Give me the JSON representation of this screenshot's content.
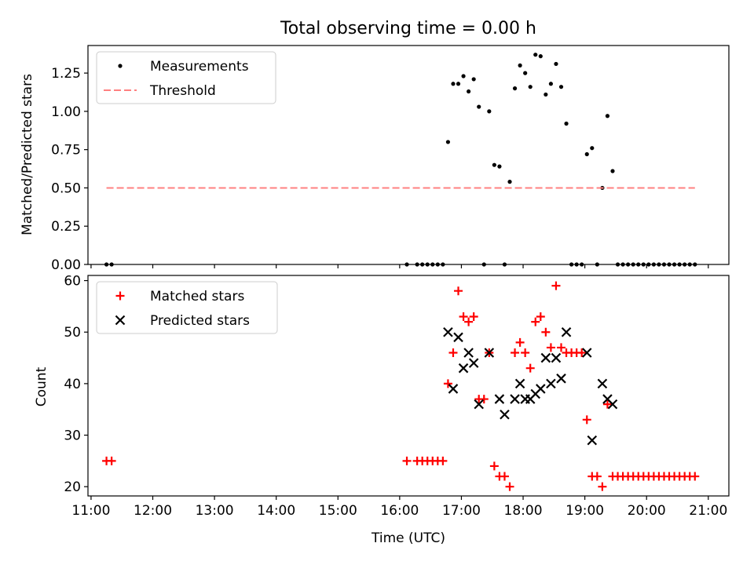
{
  "figure": {
    "title": "Total observing time = 0.00 h",
    "xlabel": "Time (UTC)",
    "x_ticks": [
      "11:00",
      "12:00",
      "13:00",
      "14:00",
      "15:00",
      "16:00",
      "17:00",
      "18:00",
      "19:00",
      "20:00",
      "21:00"
    ]
  },
  "chart_data": [
    {
      "type": "scatter",
      "title": "Total observing time = 0.00 h",
      "ylabel": "Matched/Predicted stars",
      "xlim": [
        "10:57",
        "21:20"
      ],
      "ylim": [
        0,
        1.43
      ],
      "y_ticks": [
        "0.00",
        "0.25",
        "0.50",
        "0.75",
        "1.00",
        "1.25"
      ],
      "legend_position": "top-left",
      "legend": [
        "Measurements",
        "Threshold"
      ],
      "series": [
        {
          "name": "Measurements",
          "color": "#000000",
          "marker": "dot",
          "points": [
            [
              "11:15",
              0
            ],
            [
              "11:20",
              0
            ],
            [
              "16:07",
              0
            ],
            [
              "16:17",
              0
            ],
            [
              "16:22",
              0
            ],
            [
              "16:27",
              0
            ],
            [
              "16:32",
              0
            ],
            [
              "16:37",
              0
            ],
            [
              "16:42",
              0
            ],
            [
              "16:47",
              0.8
            ],
            [
              "16:52",
              1.18
            ],
            [
              "16:57",
              1.18
            ],
            [
              "17:02",
              1.23
            ],
            [
              "17:07",
              1.13
            ],
            [
              "17:12",
              1.21
            ],
            [
              "17:17",
              1.03
            ],
            [
              "17:22",
              0
            ],
            [
              "17:27",
              1.0
            ],
            [
              "17:32",
              0.65
            ],
            [
              "17:37",
              0.64
            ],
            [
              "17:42",
              0
            ],
            [
              "17:47",
              0.54
            ],
            [
              "17:52",
              1.15
            ],
            [
              "17:57",
              1.3
            ],
            [
              "18:02",
              1.25
            ],
            [
              "18:07",
              1.16
            ],
            [
              "18:12",
              1.37
            ],
            [
              "18:17",
              1.36
            ],
            [
              "18:22",
              1.11
            ],
            [
              "18:27",
              1.18
            ],
            [
              "18:32",
              1.31
            ],
            [
              "18:37",
              1.16
            ],
            [
              "18:42",
              0.92
            ],
            [
              "18:47",
              0
            ],
            [
              "18:52",
              0
            ],
            [
              "18:57",
              0
            ],
            [
              "19:02",
              0.72
            ],
            [
              "19:07",
              0.76
            ],
            [
              "19:12",
              0
            ],
            [
              "19:17",
              0.5
            ],
            [
              "19:22",
              0.97
            ],
            [
              "19:27",
              0.61
            ],
            [
              "19:32",
              0
            ],
            [
              "19:37",
              0
            ],
            [
              "19:42",
              0
            ],
            [
              "19:47",
              0
            ],
            [
              "19:52",
              0
            ],
            [
              "19:57",
              0
            ],
            [
              "20:02",
              0
            ],
            [
              "20:07",
              0
            ],
            [
              "20:12",
              0
            ],
            [
              "20:17",
              0
            ],
            [
              "20:22",
              0
            ],
            [
              "20:27",
              0
            ],
            [
              "20:32",
              0
            ],
            [
              "20:37",
              0
            ],
            [
              "20:42",
              0
            ],
            [
              "20:47",
              0
            ]
          ]
        },
        {
          "name": "Threshold",
          "color": "#ff8080",
          "line": "dashed",
          "points": [
            [
              "11:15",
              0.5
            ],
            [
              "20:47",
              0.5
            ]
          ]
        }
      ]
    },
    {
      "type": "scatter",
      "ylabel": "Count",
      "xlabel": "Time (UTC)",
      "xlim": [
        "10:57",
        "21:20"
      ],
      "ylim": [
        18.2,
        61
      ],
      "y_ticks": [
        "20",
        "30",
        "40",
        "50",
        "60"
      ],
      "legend_position": "top-left",
      "legend": [
        "Matched stars",
        "Predicted stars"
      ],
      "series": [
        {
          "name": "Matched stars",
          "color": "#ff0000",
          "marker": "plus",
          "points": [
            [
              "11:15",
              25
            ],
            [
              "11:20",
              25
            ],
            [
              "16:07",
              25
            ],
            [
              "16:17",
              25
            ],
            [
              "16:22",
              25
            ],
            [
              "16:27",
              25
            ],
            [
              "16:32",
              25
            ],
            [
              "16:37",
              25
            ],
            [
              "16:42",
              25
            ],
            [
              "16:47",
              40
            ],
            [
              "16:52",
              46
            ],
            [
              "16:57",
              58
            ],
            [
              "17:02",
              53
            ],
            [
              "17:07",
              52
            ],
            [
              "17:12",
              53
            ],
            [
              "17:17",
              37
            ],
            [
              "17:22",
              37
            ],
            [
              "17:27",
              46
            ],
            [
              "17:32",
              24
            ],
            [
              "17:37",
              22
            ],
            [
              "17:42",
              22
            ],
            [
              "17:47",
              20
            ],
            [
              "17:52",
              46
            ],
            [
              "17:57",
              48
            ],
            [
              "18:02",
              46
            ],
            [
              "18:07",
              43
            ],
            [
              "18:12",
              52
            ],
            [
              "18:17",
              53
            ],
            [
              "18:22",
              50
            ],
            [
              "18:27",
              47
            ],
            [
              "18:32",
              59
            ],
            [
              "18:37",
              47
            ],
            [
              "18:42",
              46
            ],
            [
              "18:47",
              46
            ],
            [
              "18:52",
              46
            ],
            [
              "18:57",
              46
            ],
            [
              "19:02",
              33
            ],
            [
              "19:07",
              22
            ],
            [
              "19:12",
              22
            ],
            [
              "19:17",
              20
            ],
            [
              "19:22",
              36
            ],
            [
              "19:27",
              22
            ],
            [
              "19:32",
              22
            ],
            [
              "19:37",
              22
            ],
            [
              "19:42",
              22
            ],
            [
              "19:47",
              22
            ],
            [
              "19:52",
              22
            ],
            [
              "19:57",
              22
            ],
            [
              "20:02",
              22
            ],
            [
              "20:07",
              22
            ],
            [
              "20:12",
              22
            ],
            [
              "20:17",
              22
            ],
            [
              "20:22",
              22
            ],
            [
              "20:27",
              22
            ],
            [
              "20:32",
              22
            ],
            [
              "20:37",
              22
            ],
            [
              "20:42",
              22
            ],
            [
              "20:47",
              22
            ]
          ]
        },
        {
          "name": "Predicted stars",
          "color": "#000000",
          "marker": "x",
          "points": [
            [
              "16:47",
              50
            ],
            [
              "16:52",
              39
            ],
            [
              "16:57",
              49
            ],
            [
              "17:02",
              43
            ],
            [
              "17:07",
              46
            ],
            [
              "17:12",
              44
            ],
            [
              "17:17",
              36
            ],
            [
              "17:27",
              46
            ],
            [
              "17:37",
              37
            ],
            [
              "17:42",
              34
            ],
            [
              "17:52",
              37
            ],
            [
              "17:57",
              40
            ],
            [
              "18:02",
              37
            ],
            [
              "18:07",
              37
            ],
            [
              "18:12",
              38
            ],
            [
              "18:17",
              39
            ],
            [
              "18:22",
              45
            ],
            [
              "18:27",
              40
            ],
            [
              "18:32",
              45
            ],
            [
              "18:37",
              41
            ],
            [
              "18:42",
              50
            ],
            [
              "19:02",
              46
            ],
            [
              "19:07",
              29
            ],
            [
              "19:17",
              40
            ],
            [
              "19:22",
              37
            ],
            [
              "19:27",
              36
            ]
          ]
        }
      ]
    }
  ]
}
